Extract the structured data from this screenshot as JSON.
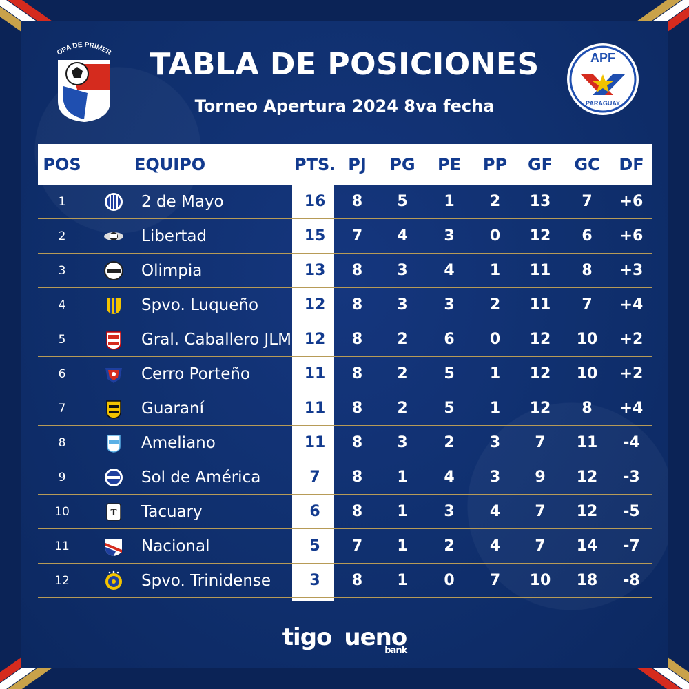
{
  "header": {
    "title": "TABLA DE POSICIONES",
    "subtitle": "Torneo Apertura 2024 8va fecha",
    "logo_left_text": "COPA DE PRIMERA",
    "logo_right_top": "APF",
    "logo_right_bottom": "PARAGUAY"
  },
  "colors": {
    "background": "#10306f",
    "header_row": "#ffffff",
    "header_text": "#123a8e",
    "divider": "#b79b57",
    "flag_red": "#d52b1e",
    "gold": "#c9a24a"
  },
  "table": {
    "columns": {
      "pos": "POS",
      "equipo": "EQUIPO",
      "pts": "PTS.",
      "pj": "PJ",
      "pg": "PG",
      "pe": "PE",
      "pp": "PP",
      "gf": "GF",
      "gc": "GC",
      "df": "DF"
    },
    "rows": [
      {
        "pos": "1",
        "team": "2 de Mayo",
        "crest": "2-de-mayo-crest-icon",
        "pts": "16",
        "pj": "8",
        "pg": "5",
        "pe": "1",
        "pp": "2",
        "gf": "13",
        "gc": "7",
        "df": "+6"
      },
      {
        "pos": "2",
        "team": "Libertad",
        "crest": "libertad-crest-icon",
        "pts": "15",
        "pj": "7",
        "pg": "4",
        "pe": "3",
        "pp": "0",
        "gf": "12",
        "gc": "6",
        "df": "+6"
      },
      {
        "pos": "3",
        "team": "Olimpia",
        "crest": "olimpia-crest-icon",
        "pts": "13",
        "pj": "8",
        "pg": "3",
        "pe": "4",
        "pp": "1",
        "gf": "11",
        "gc": "8",
        "df": "+3"
      },
      {
        "pos": "4",
        "team": "Spvo. Luqueño",
        "crest": "luqueno-crest-icon",
        "pts": "12",
        "pj": "8",
        "pg": "3",
        "pe": "3",
        "pp": "2",
        "gf": "11",
        "gc": "7",
        "df": "+4"
      },
      {
        "pos": "5",
        "team": "Gral. Caballero JLM",
        "crest": "caballero-crest-icon",
        "pts": "12",
        "pj": "8",
        "pg": "2",
        "pe": "6",
        "pp": "0",
        "gf": "12",
        "gc": "10",
        "df": "+2"
      },
      {
        "pos": "6",
        "team": "Cerro Porteño",
        "crest": "cerro-porteno-crest-icon",
        "pts": "11",
        "pj": "8",
        "pg": "2",
        "pe": "5",
        "pp": "1",
        "gf": "12",
        "gc": "10",
        "df": "+2"
      },
      {
        "pos": "7",
        "team": "Guaraní",
        "crest": "guarani-crest-icon",
        "pts": "11",
        "pj": "8",
        "pg": "2",
        "pe": "5",
        "pp": "1",
        "gf": "12",
        "gc": "8",
        "df": "+4"
      },
      {
        "pos": "8",
        "team": "Ameliano",
        "crest": "ameliano-crest-icon",
        "pts": "11",
        "pj": "8",
        "pg": "3",
        "pe": "2",
        "pp": "3",
        "gf": "7",
        "gc": "11",
        "df": "-4"
      },
      {
        "pos": "9",
        "team": "Sol de América",
        "crest": "sol-de-america-crest-icon",
        "pts": "7",
        "pj": "8",
        "pg": "1",
        "pe": "4",
        "pp": "3",
        "gf": "9",
        "gc": "12",
        "df": "-3"
      },
      {
        "pos": "10",
        "team": "Tacuary",
        "crest": "tacuary-crest-icon",
        "pts": "6",
        "pj": "8",
        "pg": "1",
        "pe": "3",
        "pp": "4",
        "gf": "7",
        "gc": "12",
        "df": "-5"
      },
      {
        "pos": "11",
        "team": "Nacional",
        "crest": "nacional-crest-icon",
        "pts": "5",
        "pj": "7",
        "pg": "1",
        "pe": "2",
        "pp": "4",
        "gf": "7",
        "gc": "14",
        "df": "-7"
      },
      {
        "pos": "12",
        "team": "Spvo. Trinidense",
        "crest": "trinidense-crest-icon",
        "pts": "3",
        "pj": "8",
        "pg": "1",
        "pe": "0",
        "pp": "7",
        "gf": "10",
        "gc": "18",
        "df": "-8"
      }
    ]
  },
  "sponsors": {
    "tigo": "tigo",
    "ueno": "ueno",
    "bank": "bank"
  }
}
